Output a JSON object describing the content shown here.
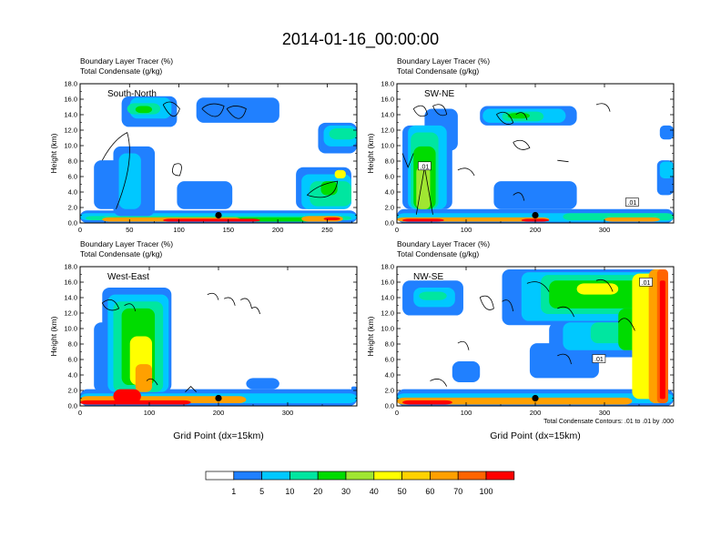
{
  "figure_title": "2014-01-16_00:00:00",
  "chart_data": [
    {
      "type": "heatmap",
      "cross_section": "South-North",
      "title_line1": "Boundary Layer Tracer    (%)",
      "title_line2": "Total Condensate    (g/kg)",
      "xlabel": "",
      "ylabel": "Height (km)",
      "xlim": [
        0,
        280
      ],
      "ylim": [
        0,
        18
      ],
      "xticks": [
        "0",
        "50",
        "100",
        "150",
        "200",
        "250"
      ],
      "yticks": [
        "0.0",
        "2.0",
        "4.0",
        "6.0",
        "8.0",
        "10.0",
        "12.0",
        "14.0",
        "16.0",
        "18.0"
      ],
      "marker_x": 140,
      "marker_y": 1.0
    },
    {
      "type": "heatmap",
      "cross_section": "SW-NE",
      "title_line1": "Boundary Layer Tracer    (%)",
      "title_line2": "Total Condensate    (g/kg)",
      "xlabel": "",
      "ylabel": "Height (km)",
      "xlim": [
        0,
        400
      ],
      "ylim": [
        0,
        18
      ],
      "xticks": [
        "0",
        "100",
        "200",
        "300"
      ],
      "yticks": [
        "0.0",
        "2.0",
        "4.0",
        "6.0",
        "8.0",
        "10.0",
        "12.0",
        "14.0",
        "16.0",
        "18.0"
      ],
      "marker_x": 200,
      "marker_y": 1.0,
      "contour_labels": [
        ".01",
        ".01"
      ]
    },
    {
      "type": "heatmap",
      "cross_section": "West-East",
      "title_line1": "Boundary Layer Tracer    (%)",
      "title_line2": "Total Condensate    (g/kg)",
      "xlabel": "Grid Point (dx=15km)",
      "ylabel": "Height (km)",
      "xlim": [
        0,
        400
      ],
      "ylim": [
        0,
        18
      ],
      "xticks": [
        "0",
        "100",
        "200",
        "300"
      ],
      "yticks": [
        "0.0",
        "2.0",
        "4.0",
        "6.0",
        "8.0",
        "10.0",
        "12.0",
        "14.0",
        "16.0",
        "18.0"
      ],
      "marker_x": 200,
      "marker_y": 1.0
    },
    {
      "type": "heatmap",
      "cross_section": "NW-SE",
      "title_line1": "Boundary Layer Tracer    (%)",
      "title_line2": "Total Condensate    (g/kg)",
      "xlabel": "Grid Point (dx=15km)",
      "ylabel": "Height (km)",
      "xlim": [
        0,
        400
      ],
      "ylim": [
        0,
        18
      ],
      "xticks": [
        "0",
        "100",
        "200",
        "300"
      ],
      "yticks": [
        "0.0",
        "2.0",
        "4.0",
        "6.0",
        "8.0",
        "10.0",
        "12.0",
        "14.0",
        "16.0",
        "18.0"
      ],
      "marker_x": 200,
      "marker_y": 1.0,
      "contour_labels": [
        ".01",
        ".01"
      ],
      "contour_note": "Total Condensate Contours: .01 to .01 by .000"
    }
  ],
  "colorbar": {
    "labels": [
      "1",
      "5",
      "10",
      "20",
      "30",
      "40",
      "50",
      "60",
      "70",
      "100"
    ],
    "colors": [
      "#ffffff",
      "#2080ff",
      "#00c8ff",
      "#00e6a0",
      "#00dc00",
      "#a0e632",
      "#ffff00",
      "#ffd200",
      "#ffa000",
      "#ff6400",
      "#ff0000"
    ]
  }
}
